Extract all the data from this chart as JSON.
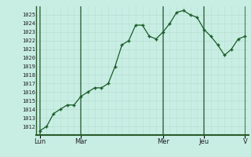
{
  "background_color": "#c8eee4",
  "line_color": "#1a5c28",
  "marker_color": "#1a5c28",
  "y_values": [
    1011.5,
    1012.0,
    1013.5,
    1014.0,
    1014.5,
    1014.5,
    1015.5,
    1016.0,
    1016.5,
    1016.5,
    1017.0,
    1019.0,
    1021.5,
    1022.0,
    1023.8,
    1023.8,
    1022.5,
    1022.2,
    1023.0,
    1024.0,
    1025.3,
    1025.5,
    1025.0,
    1024.7,
    1023.3,
    1022.5,
    1021.5,
    1020.3,
    1021.0,
    1022.2,
    1022.5
  ],
  "x_day_labels": [
    "Lun",
    "Mar",
    "Mer",
    "Jeu",
    "V"
  ],
  "x_day_positions": [
    0,
    6,
    18,
    24,
    30
  ],
  "ylim": [
    1011,
    1026
  ],
  "yticks": [
    1012,
    1013,
    1014,
    1015,
    1016,
    1017,
    1018,
    1019,
    1020,
    1021,
    1022,
    1023,
    1024,
    1025
  ],
  "n_points": 31,
  "minor_vgrid_color": "#b8ddd0",
  "major_vgrid_color": "#4a7a5a",
  "hgrid_color": "#b8ddd0",
  "hgrid_major_color": "#c0c8c0",
  "spine_color": "#2a5a2a"
}
